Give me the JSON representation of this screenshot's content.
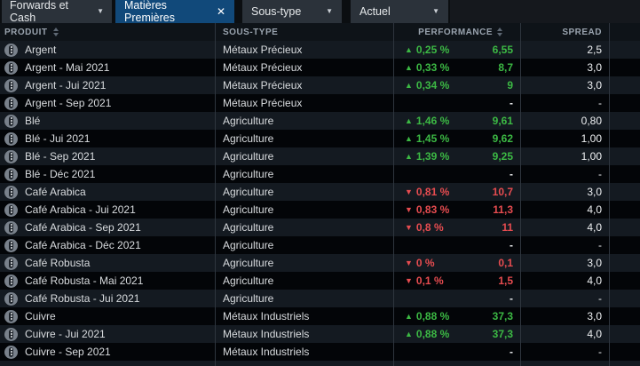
{
  "toolbar": {
    "forwards_tab": {
      "label": "Forwards et Cash"
    },
    "active_tab": {
      "label": "Matières Premières"
    },
    "subtype_filter": {
      "label": "Sous-type"
    },
    "actuel_filter": {
      "label": "Actuel"
    }
  },
  "table": {
    "headers": {
      "product": "PRODUIT",
      "subtype": "SOUS-TYPE",
      "performance": "PERFORMANCE",
      "spread": "SPREAD"
    },
    "rows": [
      {
        "product": "Argent",
        "subtype": "Métaux Précieux",
        "trend": "up",
        "perf_pct": "0,25 %",
        "perf_value": "6,55",
        "spread": "2,5"
      },
      {
        "product": "Argent - Mai 2021",
        "subtype": "Métaux Précieux",
        "trend": "up",
        "perf_pct": "0,33 %",
        "perf_value": "8,7",
        "spread": "3,0"
      },
      {
        "product": "Argent - Jui 2021",
        "subtype": "Métaux Précieux",
        "trend": "up",
        "perf_pct": "0,34 %",
        "perf_value": "9",
        "spread": "3,0"
      },
      {
        "product": "Argent - Sep 2021",
        "subtype": "Métaux Précieux",
        "trend": null,
        "perf_pct": "",
        "perf_value": "-",
        "spread": "-"
      },
      {
        "product": "Blé",
        "subtype": "Agriculture",
        "trend": "up",
        "perf_pct": "1,46 %",
        "perf_value": "9,61",
        "spread": "0,80"
      },
      {
        "product": "Blé - Jui 2021",
        "subtype": "Agriculture",
        "trend": "up",
        "perf_pct": "1,45 %",
        "perf_value": "9,62",
        "spread": "1,00"
      },
      {
        "product": "Blé - Sep 2021",
        "subtype": "Agriculture",
        "trend": "up",
        "perf_pct": "1,39 %",
        "perf_value": "9,25",
        "spread": "1,00"
      },
      {
        "product": "Blé - Déc 2021",
        "subtype": "Agriculture",
        "trend": null,
        "perf_pct": "",
        "perf_value": "-",
        "spread": "-"
      },
      {
        "product": "Café Arabica",
        "subtype": "Agriculture",
        "trend": "down",
        "perf_pct": "0,81 %",
        "perf_value": "10,7",
        "spread": "3,0"
      },
      {
        "product": "Café Arabica - Jui 2021",
        "subtype": "Agriculture",
        "trend": "down",
        "perf_pct": "0,83 %",
        "perf_value": "11,3",
        "spread": "4,0"
      },
      {
        "product": "Café Arabica - Sep 2021",
        "subtype": "Agriculture",
        "trend": "down",
        "perf_pct": "0,8 %",
        "perf_value": "11",
        "spread": "4,0"
      },
      {
        "product": "Café Arabica - Déc 2021",
        "subtype": "Agriculture",
        "trend": null,
        "perf_pct": "",
        "perf_value": "-",
        "spread": "-"
      },
      {
        "product": "Café Robusta",
        "subtype": "Agriculture",
        "trend": "down",
        "perf_pct": "0 %",
        "perf_value": "0,1",
        "spread": "3,0"
      },
      {
        "product": "Café Robusta - Mai 2021",
        "subtype": "Agriculture",
        "trend": "down",
        "perf_pct": "0,1 %",
        "perf_value": "1,5",
        "spread": "4,0"
      },
      {
        "product": "Café Robusta - Jui 2021",
        "subtype": "Agriculture",
        "trend": null,
        "perf_pct": "",
        "perf_value": "-",
        "spread": "-"
      },
      {
        "product": "Cuivre",
        "subtype": "Métaux Industriels",
        "trend": "up",
        "perf_pct": "0,88 %",
        "perf_value": "37,3",
        "spread": "3,0"
      },
      {
        "product": "Cuivre - Jui 2021",
        "subtype": "Métaux Industriels",
        "trend": "up",
        "perf_pct": "0,88 %",
        "perf_value": "37,3",
        "spread": "4,0"
      },
      {
        "product": "Cuivre - Sep 2021",
        "subtype": "Métaux Industriels",
        "trend": null,
        "perf_pct": "",
        "perf_value": "-",
        "spread": "-"
      }
    ]
  },
  "icons": {
    "up_arrow": "▲",
    "down_arrow": "▼",
    "close": "✕",
    "dropdown_caret": "▼"
  },
  "colors": {
    "positive": "#3cb944",
    "negative": "#e74c50",
    "active_tab": "#11497a",
    "row_light": "#141a21",
    "row_dark": "#030508"
  }
}
